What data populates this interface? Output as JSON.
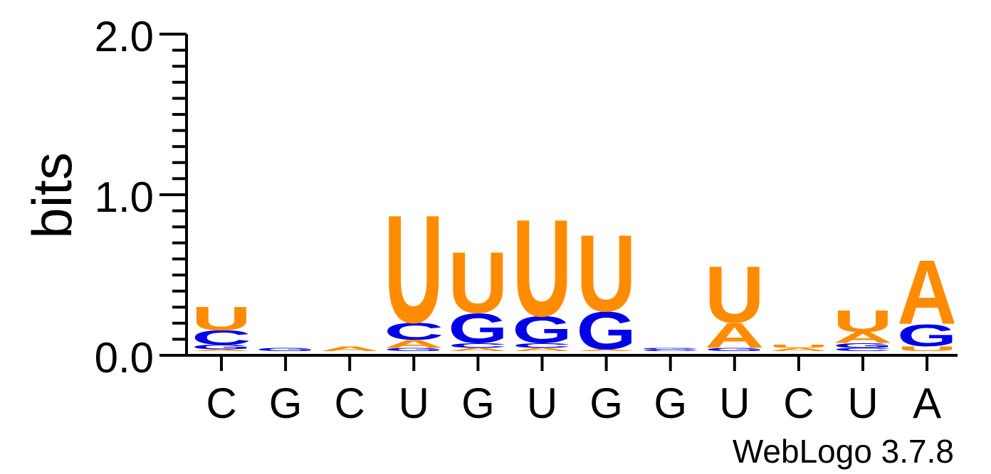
{
  "chart_data": {
    "type": "sequence-logo",
    "ylabel": "bits",
    "ylim": [
      0,
      2.0
    ],
    "y_ticks": [
      "0.0",
      "1.0",
      "2.0"
    ],
    "x_tick_labels": [
      "C",
      "G",
      "C",
      "U",
      "G",
      "U",
      "G",
      "G",
      "U",
      "C",
      "U",
      "A"
    ],
    "credit": "WebLogo 3.7.8",
    "colors": {
      "U": "#ff8c00",
      "A": "#ff8c00",
      "C": "#0000e6",
      "G": "#0000e6"
    },
    "positions": [
      {
        "stack": [
          {
            "letter": "A",
            "bits": 0.01
          },
          {
            "letter": "G",
            "bits": 0.03
          },
          {
            "letter": "C",
            "bits": 0.09
          },
          {
            "letter": "U",
            "bits": 0.15
          }
        ]
      },
      {
        "stack": [
          {
            "letter": "G",
            "bits": 0.02
          }
        ]
      },
      {
        "stack": [
          {
            "letter": "A",
            "bits": 0.03
          }
        ]
      },
      {
        "stack": [
          {
            "letter": "G",
            "bits": 0.02
          },
          {
            "letter": "A",
            "bits": 0.05
          },
          {
            "letter": "C",
            "bits": 0.11
          },
          {
            "letter": "U",
            "bits": 0.69
          }
        ]
      },
      {
        "stack": [
          {
            "letter": "A",
            "bits": 0.02
          },
          {
            "letter": "C",
            "bits": 0.03
          },
          {
            "letter": "G",
            "bits": 0.19
          },
          {
            "letter": "U",
            "bits": 0.39
          }
        ]
      },
      {
        "stack": [
          {
            "letter": "A",
            "bits": 0.02
          },
          {
            "letter": "C",
            "bits": 0.03
          },
          {
            "letter": "G",
            "bits": 0.17
          },
          {
            "letter": "U",
            "bits": 0.62
          }
        ]
      },
      {
        "stack": [
          {
            "letter": "A",
            "bits": 0.01
          },
          {
            "letter": "G",
            "bits": 0.24
          },
          {
            "letter": "U",
            "bits": 0.49
          }
        ]
      },
      {
        "stack": [
          {
            "letter": "C",
            "bits": 0.01
          },
          {
            "letter": "G",
            "bits": 0.01
          }
        ]
      },
      {
        "stack": [
          {
            "letter": "G",
            "bits": 0.02
          },
          {
            "letter": "A",
            "bits": 0.16
          },
          {
            "letter": "U",
            "bits": 0.36
          }
        ]
      },
      {
        "stack": [
          {
            "letter": "A",
            "bits": 0.02
          },
          {
            "letter": "U",
            "bits": 0.02
          }
        ]
      },
      {
        "stack": [
          {
            "letter": "C",
            "bits": 0.02
          },
          {
            "letter": "G",
            "bits": 0.03
          },
          {
            "letter": "A",
            "bits": 0.07
          },
          {
            "letter": "U",
            "bits": 0.14
          }
        ]
      },
      {
        "stack": [
          {
            "letter": "U",
            "bits": 0.03
          },
          {
            "letter": "G",
            "bits": 0.14
          },
          {
            "letter": "A",
            "bits": 0.41
          }
        ]
      }
    ]
  }
}
